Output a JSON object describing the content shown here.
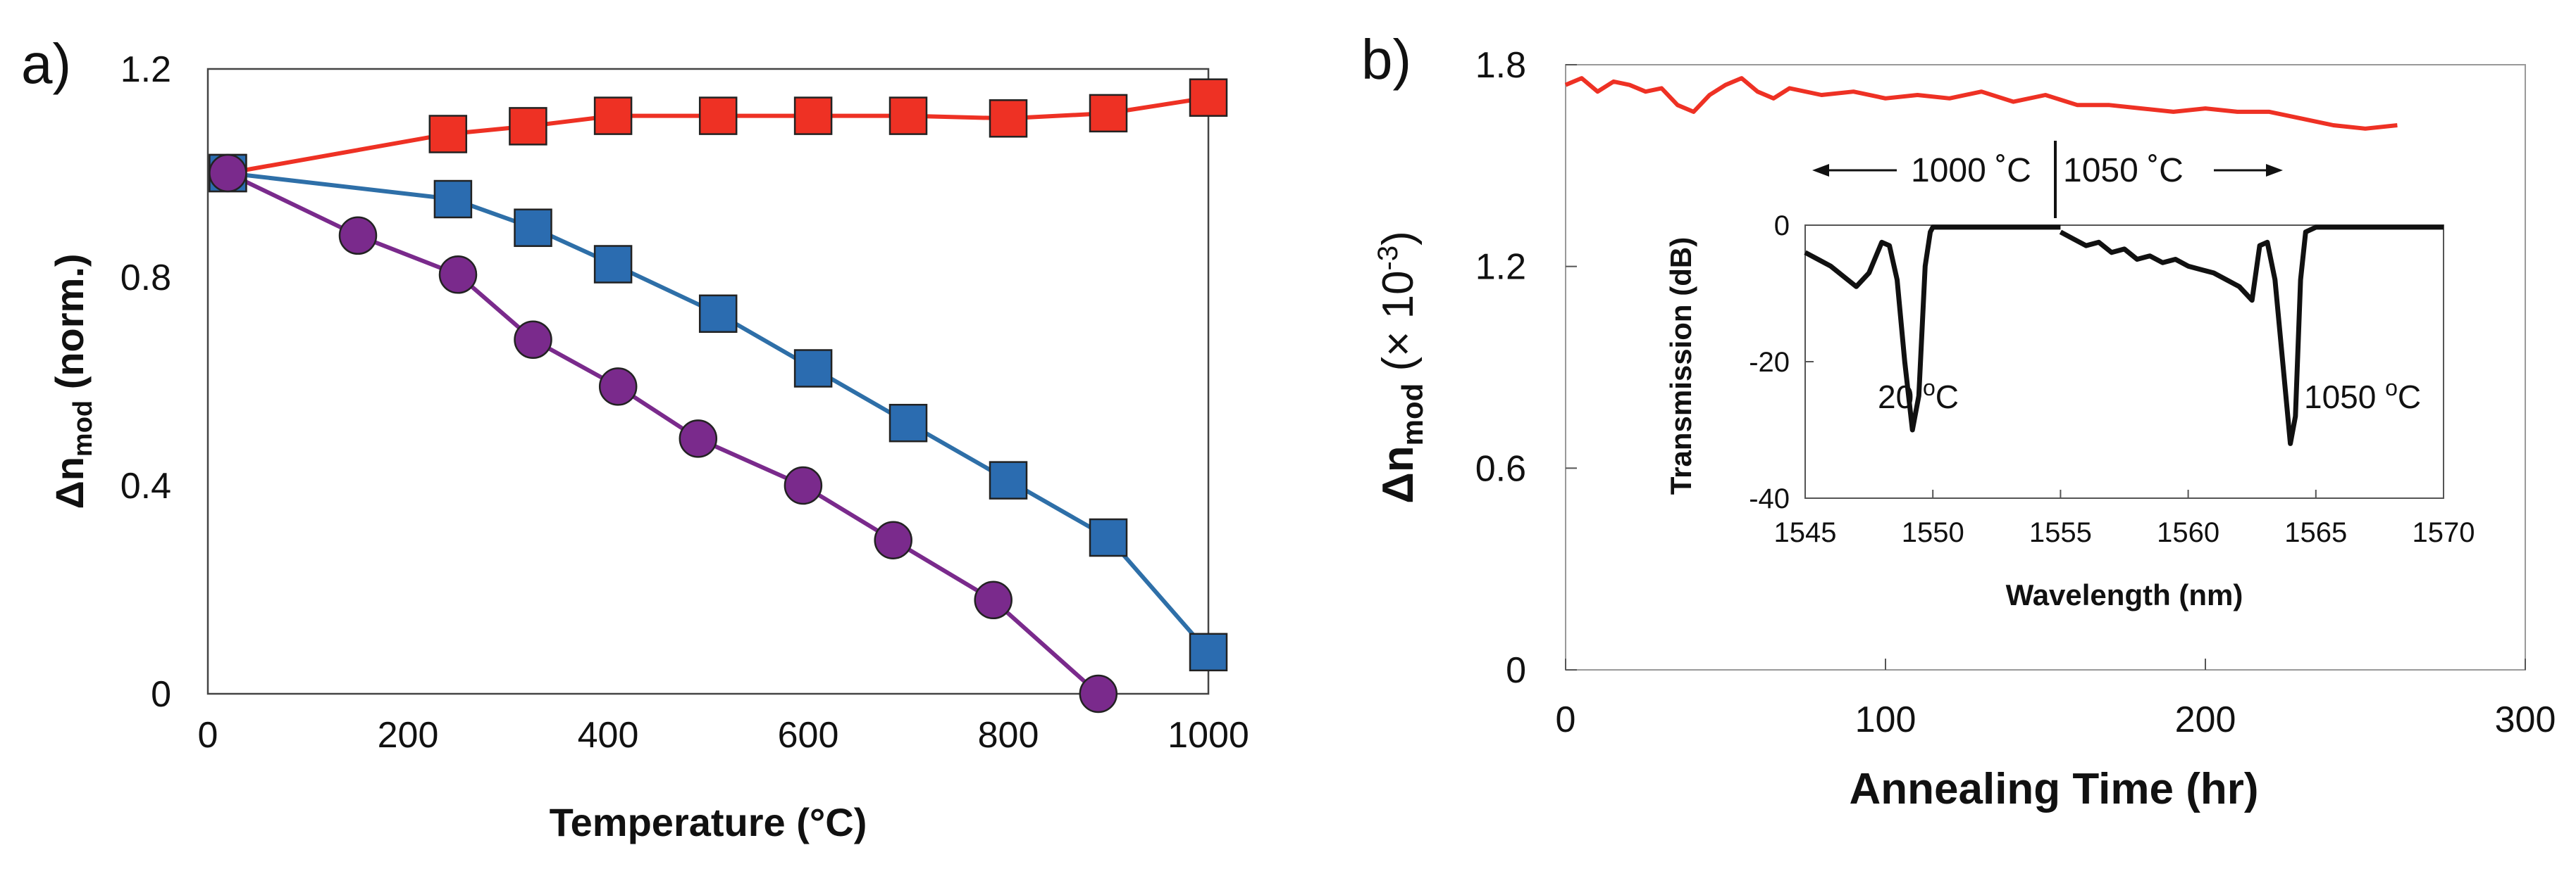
{
  "chart_data": [
    {
      "type": "line",
      "panel_label": "a)",
      "xlabel": "Temperature (°C)",
      "ylabel_main": "Δn",
      "ylabel_sub": "mod",
      "ylabel_rest": " (norm.)",
      "xlim": [
        0,
        1000
      ],
      "ylim": [
        0,
        1.2
      ],
      "xticks": [
        0,
        200,
        400,
        600,
        800,
        1000
      ],
      "yticks": [
        0,
        0.4,
        0.8,
        1.2
      ],
      "ytick_labels": [
        "0",
        "0.4",
        "0.8",
        "1.2"
      ],
      "grid": false,
      "series": [
        {
          "name": "red squares",
          "color": "#ee3124",
          "line_color": "#ee3124",
          "marker": "square",
          "x": [
            20,
            240,
            320,
            405,
            510,
            605,
            700,
            800,
            900,
            1000
          ],
          "y": [
            1.0,
            1.075,
            1.09,
            1.11,
            1.11,
            1.11,
            1.11,
            1.105,
            1.115,
            1.145
          ]
        },
        {
          "name": "blue squares",
          "color": "#2b6cb0",
          "line_color": "#2e6fa8",
          "marker": "square",
          "x": [
            20,
            245,
            325,
            405,
            510,
            605,
            700,
            800,
            900,
            1000
          ],
          "y": [
            1.0,
            0.95,
            0.895,
            0.825,
            0.73,
            0.625,
            0.52,
            0.41,
            0.3,
            0.08
          ]
        },
        {
          "name": "purple circles",
          "color": "#7a2a8c",
          "line_color": "#7a2a8c",
          "marker": "circle",
          "x": [
            20,
            150,
            250,
            325,
            410,
            490,
            595,
            685,
            785,
            890
          ],
          "y": [
            1.0,
            0.88,
            0.805,
            0.68,
            0.59,
            0.49,
            0.4,
            0.295,
            0.18,
            0.0
          ]
        }
      ]
    },
    {
      "type": "line",
      "panel_label": "b)",
      "xlabel": "Annealing Time (hr)",
      "ylabel_main": "Δn",
      "ylabel_sub": "mod",
      "ylabel_rest": " (× 10",
      "ylabel_sup": "-3",
      "ylabel_close": ")",
      "xlim": [
        0,
        300
      ],
      "ylim": [
        0,
        1.8
      ],
      "xticks": [
        0,
        100,
        200,
        300
      ],
      "yticks": [
        0,
        0.6,
        1.2,
        1.8
      ],
      "ytick_labels": [
        "0",
        "0.6",
        "1.2",
        "1.8"
      ],
      "grid": false,
      "series": [
        {
          "name": "Δn_mod vs annealing time",
          "color": "#ee3124",
          "x": [
            0,
            5,
            10,
            15,
            20,
            25,
            30,
            35,
            40,
            45,
            50,
            55,
            60,
            65,
            70,
            80,
            90,
            100,
            110,
            120,
            130,
            140,
            150,
            160,
            170,
            180,
            190,
            200,
            210,
            220,
            230,
            240,
            250,
            260
          ],
          "y": [
            1.74,
            1.76,
            1.72,
            1.75,
            1.74,
            1.72,
            1.73,
            1.68,
            1.66,
            1.71,
            1.74,
            1.76,
            1.72,
            1.7,
            1.73,
            1.71,
            1.72,
            1.7,
            1.71,
            1.7,
            1.72,
            1.69,
            1.71,
            1.68,
            1.68,
            1.67,
            1.66,
            1.67,
            1.66,
            1.66,
            1.64,
            1.62,
            1.61,
            1.62
          ]
        }
      ],
      "annotations": {
        "left_arrow_label": "1000 ˚C",
        "right_arrow_label": "1050 ˚C"
      },
      "inset": {
        "type": "line",
        "xlabel": "Wavelength (nm)",
        "ylabel": "Transmission (dB)",
        "xlim": [
          1545,
          1570
        ],
        "ylim": [
          -40,
          0
        ],
        "xticks": [
          1545,
          1550,
          1555,
          1560,
          1565,
          1570
        ],
        "yticks": [
          0,
          -20,
          -40
        ],
        "labels": {
          "left_base": "20 ",
          "left_sup": "o",
          "left_unit": "C",
          "right_base": "1050 ",
          "right_sup": "o",
          "right_unit": "C"
        },
        "series": [
          {
            "name": "20 °C spectrum",
            "color": "#111111",
            "x": [
              1545,
              1545.5,
              1546,
              1546.5,
              1547,
              1547.5,
              1548,
              1548.3,
              1548.6,
              1548.9,
              1549.2,
              1549.45,
              1549.7,
              1549.9,
              1550,
              1552,
              1555
            ],
            "y": [
              -4,
              -5,
              -6,
              -7.5,
              -9,
              -7,
              -2.5,
              -3,
              -8,
              -20,
              -30,
              -25,
              -6,
              -1,
              -0.3,
              -0.3,
              -0.3
            ]
          },
          {
            "name": "1050 °C spectrum",
            "color": "#111111",
            "x": [
              1555,
              1555.5,
              1556,
              1556.5,
              1557,
              1557.5,
              1558,
              1558.5,
              1559,
              1559.5,
              1560,
              1560.5,
              1561,
              1561.5,
              1562,
              1562.5,
              1562.8,
              1563.1,
              1563.4,
              1563.7,
              1564,
              1564.2,
              1564.4,
              1564.6,
              1565,
              1567,
              1570
            ],
            "y": [
              -1,
              -2,
              -3,
              -2.5,
              -4,
              -3.5,
              -5,
              -4.5,
              -5.5,
              -5,
              -6,
              -6.5,
              -7,
              -8,
              -9,
              -11,
              -3,
              -2.5,
              -8,
              -20,
              -32,
              -28,
              -8,
              -1,
              -0.3,
              -0.3,
              -0.3
            ]
          }
        ]
      }
    }
  ]
}
